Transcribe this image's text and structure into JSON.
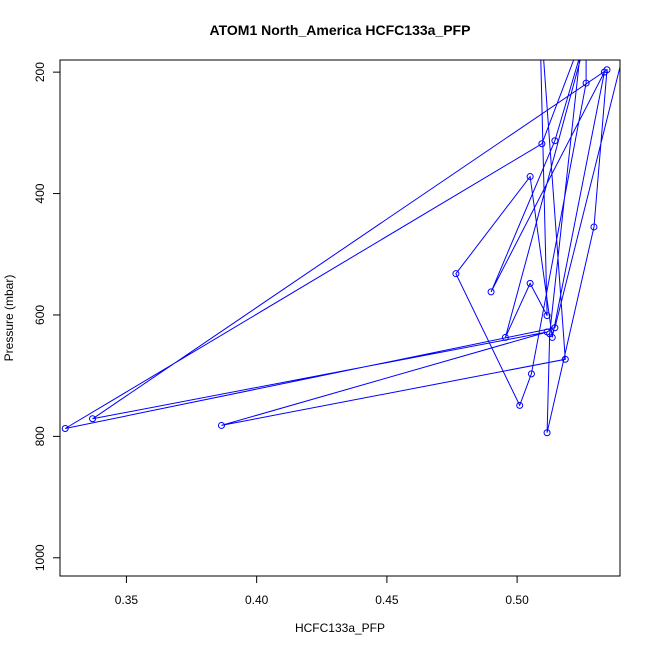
{
  "chart_data": {
    "type": "line",
    "title": "ATOM1 North_America HCFC133a_PFP",
    "xlabel": "HCFC133a_PFP",
    "ylabel": "Pressure (mbar)",
    "xlim": [
      0.3245,
      0.5395
    ],
    "ylim": [
      1030,
      180
    ],
    "y_reversed": true,
    "x_ticks": [
      0.35,
      0.4,
      0.45,
      0.5
    ],
    "x_tick_labels": [
      "0.35",
      "0.40",
      "0.45",
      "0.50"
    ],
    "y_ticks": [
      200,
      400,
      600,
      800,
      1000
    ],
    "y_tick_labels": [
      "200",
      "400",
      "600",
      "800",
      "1000"
    ],
    "grid": false,
    "series": [
      {
        "color": "#0000ff",
        "marker": "open-circle",
        "points": [
          [
            0.546,
            80
          ],
          [
            0.5145,
            621
          ],
          [
            0.3265,
            787
          ],
          [
            0.5095,
            318
          ],
          [
            0.5305,
            80
          ],
          [
            0.4955,
            637
          ],
          [
            0.505,
            548
          ],
          [
            0.5115,
            601
          ],
          [
            0.5085,
            80
          ],
          [
            0.5185,
            673
          ],
          [
            0.3865,
            782
          ],
          [
            0.5115,
            628
          ],
          [
            0.337,
            771
          ],
          [
            0.5345,
            196
          ],
          [
            0.5295,
            455
          ],
          [
            0.5115,
            794
          ],
          [
            0.5125,
            631
          ],
          [
            0.5265,
            80
          ],
          [
            0.5265,
            218
          ],
          [
            0.5055,
            697
          ],
          [
            0.501,
            749
          ],
          [
            0.4765,
            532
          ],
          [
            0.505,
            372
          ],
          [
            0.5135,
            637
          ],
          [
            0.5335,
            200
          ],
          [
            0.49,
            562
          ],
          [
            0.5145,
            313
          ],
          [
            0.5305,
            80
          ]
        ]
      }
    ]
  }
}
